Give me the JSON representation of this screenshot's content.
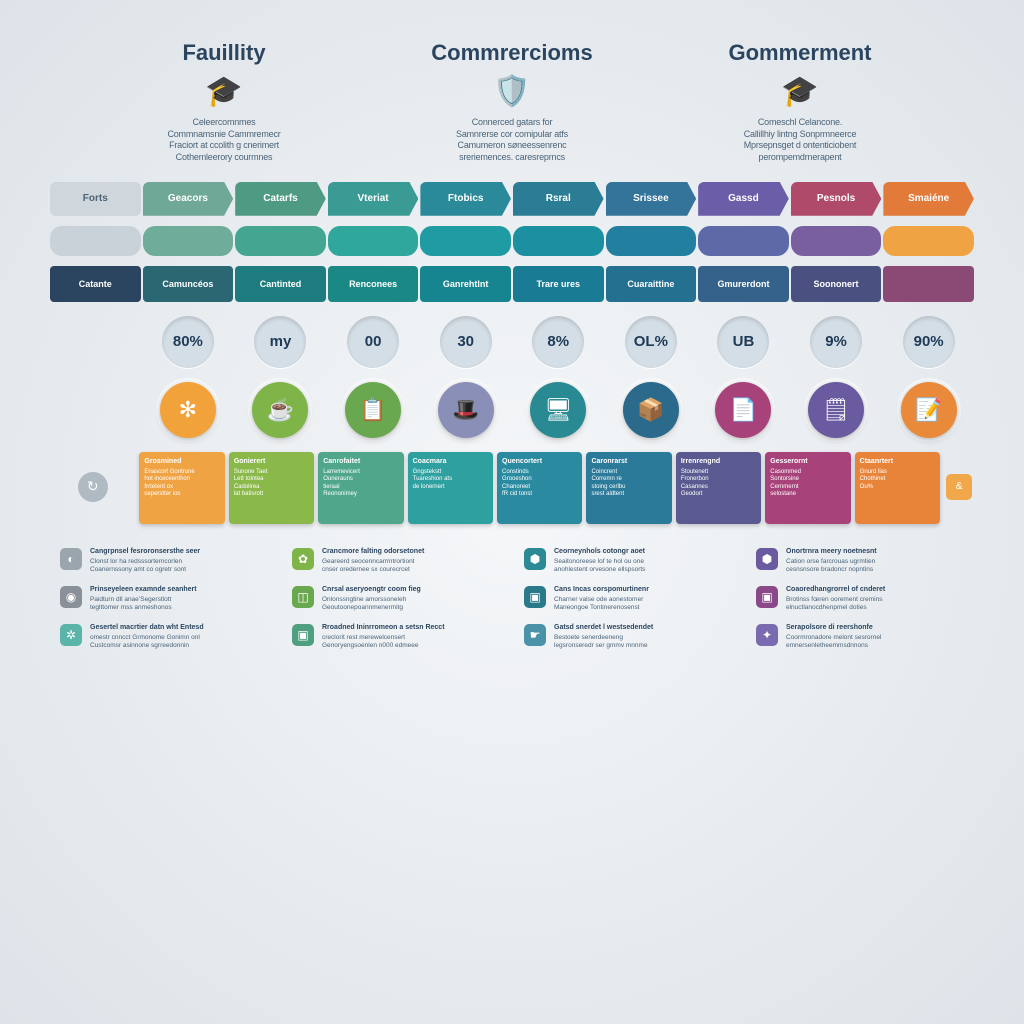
{
  "headers": [
    {
      "title": "Fauillity",
      "icon": "🎓",
      "desc": "Celeercomnmes\nCommnamsnie Cammremecr\nFraciort at ccolith g cnerimert\nCothemleerory courmnes",
      "title_color": "#2b4560"
    },
    {
      "title": "Commrercioms",
      "icon": "🛡️",
      "desc": "Connerced gatars for\nSamnrerse cor comipular atfs\nCamumeron søneessenrenc\nsreriemences. caresreprncs",
      "title_color": "#1d5a7a"
    },
    {
      "title": "Gommerment",
      "icon": "🎓",
      "desc": "Comeschl Celancone.\nCallillhiy lintng Sonprmneerce\nMprsepnsget d ontenticiobent\nperompemdrnerapent",
      "title_color": "#2b6a7a"
    }
  ],
  "tabs": [
    {
      "label": "Forts",
      "color": "#a8b5bd"
    },
    {
      "label": "Geacors",
      "color": "#6fa896"
    },
    {
      "label": "Catarfs",
      "color": "#4f9a82"
    },
    {
      "label": "Vteriat",
      "color": "#3a9b95"
    },
    {
      "label": "Ftobics",
      "color": "#2b8a9a"
    },
    {
      "label": "Rsral",
      "color": "#2a7d94"
    },
    {
      "label": "Srissee",
      "color": "#34739a"
    },
    {
      "label": "Gassd",
      "color": "#6b5da8"
    },
    {
      "label": "Pesnols",
      "color": "#b04a6a"
    },
    {
      "label": "Smaiéne",
      "color": "#e27a3a"
    }
  ],
  "round_colors": [
    "#c9d2d8",
    "#6fad9a",
    "#44a690",
    "#2fa79c",
    "#1e9ba3",
    "#1c8fa0",
    "#237fa0",
    "#5e6aa8",
    "#7a5fa0",
    "#f0a343"
  ],
  "labels": [
    {
      "text": "Catante",
      "color": "#2b4560"
    },
    {
      "text": "Camuncéos",
      "color": "#2b6673"
    },
    {
      "text": "Cantinted",
      "color": "#1f7c7e"
    },
    {
      "text": "Renconees",
      "color": "#1a8986"
    },
    {
      "text": "Ganrehtlnt",
      "color": "#17858f"
    },
    {
      "text": "Trare ures",
      "color": "#1a7b94"
    },
    {
      "text": "Cuaraittine",
      "color": "#247090"
    },
    {
      "text": "Gmurerdont",
      "color": "#35628a"
    },
    {
      "text": "Soononert",
      "color": "#4a5180"
    },
    {
      "text": "",
      "color": "#8a4a75"
    }
  ],
  "stats": [
    "80%",
    "my",
    "00",
    "30",
    "8%",
    "OL%",
    "UB",
    "9%",
    "90%"
  ],
  "icons": [
    {
      "glyph": "✻",
      "bg": "#f2a23a"
    },
    {
      "glyph": "☕",
      "bg": "#7fb548"
    },
    {
      "glyph": "📋",
      "bg": "#6aa84f"
    },
    {
      "glyph": "🎩",
      "bg": "#8a8fb8"
    },
    {
      "glyph": "🖥",
      "bg": "#2a8a94"
    },
    {
      "glyph": "📦",
      "bg": "#2b6a8a"
    },
    {
      "glyph": "📄",
      "bg": "#a8427a"
    },
    {
      "glyph": "🗒",
      "bg": "#6a5aa0"
    },
    {
      "glyph": "📝",
      "bg": "#e88a3a"
    }
  ],
  "cards": [
    {
      "title": "Grosmined",
      "body": "Enascort Gontrone\nhot inceceenthon\nfrrtetent ox\nceperstter ios",
      "bg": "#f0a343"
    },
    {
      "title": "Gonierert",
      "body": "Sunone Taet\nLett tolntea\nCadolirea\nlat batisrott",
      "bg": "#8ab94a"
    },
    {
      "title": "Canrofaitet",
      "body": "Larremevicert\nOunerauns\ntieraal\nReononimey",
      "bg": "#4fa68a"
    },
    {
      "title": "Coacmara",
      "body": "Gngstekstt\nTuareshion ats\nde lonernert",
      "bg": "#2fa0a0"
    },
    {
      "title": "Quencortert",
      "body": "Constinds\nGrooeshon\nChanoreet\nfR cid tonst",
      "bg": "#2a8aa0"
    },
    {
      "title": "Caronrarst",
      "body": "Coincrent\nCorremn re\nstoing cerlbu\nsrest aldtent",
      "bg": "#2b7a9a"
    },
    {
      "title": "Irrenrengnd",
      "body": "Stoutenett\nFronerbon\nCasannes\nGeodort",
      "bg": "#5a5a90"
    },
    {
      "title": "Gesserornt",
      "body": "Casommed\nSontorsine\nCernmernt\nselostane",
      "bg": "#a8427a"
    },
    {
      "title": "Ctaanrtert",
      "body": "Gnurd llas\nChothinet\nOu%",
      "bg": "#e8843a"
    }
  ],
  "legend": [
    {
      "icon_bg": "#9aa5ad",
      "glyph": "◐",
      "title": "Cangrpnsel fesroronsersthe seer",
      "lines": "Clonst lor ha redsssorterncorlen\nCoanernssony amt co ogretr sont"
    },
    {
      "icon_bg": "#7fb548",
      "glyph": "✿",
      "title": "Crancmore falting odorsetonet",
      "lines": "Geareerd seocenncarrmtrortiont\ncnser oredernee sx courecrcet"
    },
    {
      "icon_bg": "#2b8a94",
      "glyph": "⬢",
      "title": "Ceorneynhols cotongr aoet",
      "lines": "Seaitonoreese lof te hol ou one\nanohlestent orvesone ellspsorts"
    },
    {
      "icon_bg": "#6a5aa0",
      "glyph": "⬢",
      "title": "Onortrnra meery noetnesnt",
      "lines": "Cation orse farcrouas ugrmtien\ncesnsnsore bradoncr nopntins"
    },
    {
      "icon_bg": "#8a9098",
      "glyph": "◉",
      "title": "Prinseyeleen examnde seanhert",
      "lines": "Paidturn dll anae’Segerstlott\nteglttomer mss anmeshonos"
    },
    {
      "icon_bg": "#6aa84f",
      "glyph": "◫",
      "title": "Cnrsal aseryoengtr coom fieg",
      "lines": "Onlonssngtine amorssoneleh\nGeoutoonepoannmenermitg"
    },
    {
      "icon_bg": "#2a7a8a",
      "glyph": "▣",
      "title": "Cans Incas corspomurtinenr",
      "lines": "Charner valse ode aonestomer\nManeongoe Tontinerenosenst"
    },
    {
      "icon_bg": "#8a4a8a",
      "glyph": "▣",
      "title": "Coaoredhangrorrel of cnderet",
      "lines": "Brotinss fœren oorement cremins\nelnuctlanocdhenpmel doties"
    },
    {
      "icon_bg": "#5ab5a8",
      "glyph": "✲",
      "title": "Gesertel macrtier datn wht Entesd",
      "lines": "omestr cnncct Grmonome Gonimn onl\nCustcomsr asinnone sgrreedonnin"
    },
    {
      "icon_bg": "#4fa080",
      "glyph": "▣",
      "title": "Rroadned Ininrromeon a setsn Recct",
      "lines": "creclorit rest merewelcensert\nGenoryengsoenlen n000 edmeee"
    },
    {
      "icon_bg": "#4a92a8",
      "glyph": "☛",
      "title": "Gatsd snerdet l westsedendet",
      "lines": "Bestoete senerdeeneng\nlegsronseredr ser gmmv mnnme"
    },
    {
      "icon_bg": "#7a6ab0",
      "glyph": "✦",
      "title": "Serapolsore di reershonfe",
      "lines": "Coormronadore melont sesrornel\nemnersenletheemmsdnnons"
    }
  ]
}
